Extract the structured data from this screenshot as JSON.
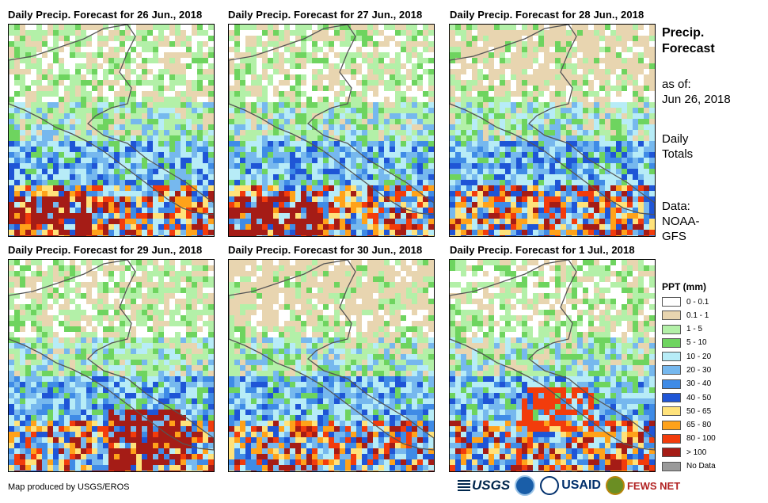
{
  "panels": [
    {
      "title": "Daily Precip. Forecast for 26 Jun., 2018",
      "seed": 11
    },
    {
      "title": "Daily Precip. Forecast for 27 Jun., 2018",
      "seed": 23
    },
    {
      "title": "Daily Precip. Forecast for 28 Jun., 2018",
      "seed": 37
    },
    {
      "title": "Daily Precip. Forecast for 29 Jun., 2018",
      "seed": 41
    },
    {
      "title": "Daily Precip. Forecast for 30 Jun., 2018",
      "seed": 53
    },
    {
      "title": "Daily Precip. Forecast for 1 Jul., 2018",
      "seed": 67
    }
  ],
  "side": {
    "title_line1": "Precip.",
    "title_line2": "Forecast",
    "asof_line1": "as of:",
    "asof_line2": "Jun 26, 2018",
    "totals_line1": "Daily",
    "totals_line2": "Totals",
    "data_line1": "Data:",
    "data_line2": "NOAA-",
    "data_line3": "GFS"
  },
  "legend": {
    "title": "PPT (mm)",
    "items": [
      {
        "label": "0 - 0.1",
        "color": "#ffffff"
      },
      {
        "label": "0.1 - 1",
        "color": "#e8d5b0"
      },
      {
        "label": "1 - 5",
        "color": "#b3f0a8"
      },
      {
        "label": "5 - 10",
        "color": "#6ed45f"
      },
      {
        "label": "10 - 20",
        "color": "#b7ecf7"
      },
      {
        "label": "20 - 30",
        "color": "#76b8ee"
      },
      {
        "label": "30 - 40",
        "color": "#3f8be6"
      },
      {
        "label": "40 - 50",
        "color": "#1f55d6"
      },
      {
        "label": "50 - 65",
        "color": "#ffe27a"
      },
      {
        "label": "65 - 80",
        "color": "#ffa21a"
      },
      {
        "label": "80 - 100",
        "color": "#f23c0c"
      },
      {
        "label": "> 100",
        "color": "#a51c16"
      },
      {
        "label": "No Data",
        "color": "#9a9a9a"
      }
    ]
  },
  "credit": "Map produced by USGS/EROS",
  "logos": {
    "usgs": "USGS",
    "usaid": "USAID",
    "fews": "FEWS NET"
  }
}
